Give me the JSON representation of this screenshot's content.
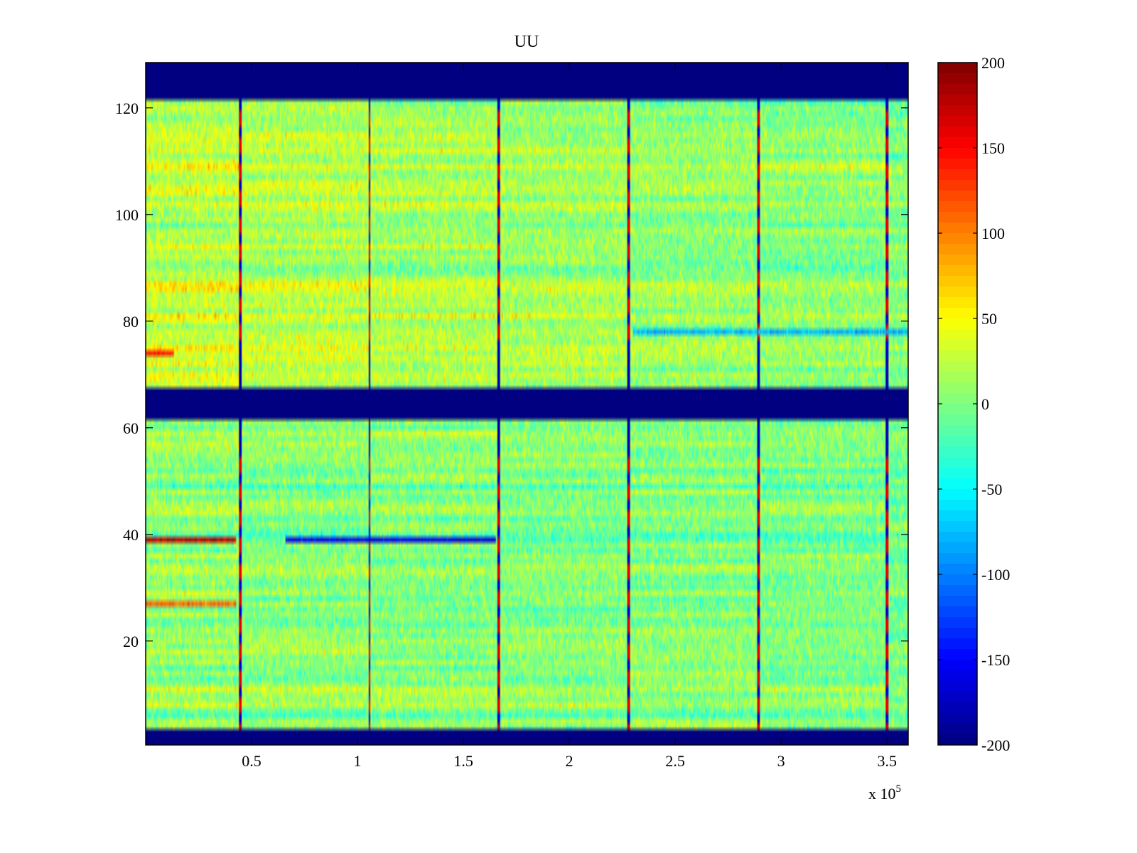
{
  "chart_data": {
    "type": "heatmap",
    "title": "UU",
    "xlabel": "",
    "ylabel": "",
    "x_multiplier_label": "x 10",
    "x_multiplier_exponent": "5",
    "xlim": [
      0,
      3.6
    ],
    "ylim": [
      0.5,
      128.5
    ],
    "xticks": [
      0.5,
      1,
      1.5,
      2,
      2.5,
      3,
      3.5
    ],
    "xtick_labels": [
      "0.5",
      "1",
      "1.5",
      "2",
      "2.5",
      "3",
      "3.5"
    ],
    "yticks": [
      20,
      40,
      60,
      80,
      100,
      120
    ],
    "ytick_labels": [
      "20",
      "40",
      "60",
      "80",
      "100",
      "120"
    ],
    "colormap": "jet",
    "clim": [
      -200,
      200
    ],
    "colorbar_ticks": [
      200,
      150,
      100,
      50,
      0,
      -50,
      -100,
      -150,
      -200
    ],
    "colorbar_tick_labels": [
      "200",
      "150",
      "100",
      "50",
      "0",
      "-50",
      "-100",
      "-150",
      "-200"
    ],
    "saturated_rows_min": [
      [
        1,
        3
      ],
      [
        62,
        67
      ],
      [
        122,
        128
      ]
    ],
    "periodic_event_columns_x": [
      0.445,
      1.057,
      1.668,
      2.28,
      2.891,
      3.502
    ],
    "notable_features": [
      {
        "row": 39,
        "x_range": [
          0.0,
          0.43
        ],
        "value": 180
      },
      {
        "row": 39,
        "x_range": [
          0.66,
          1.65
        ],
        "value": -160
      },
      {
        "row": 74,
        "x_range": [
          0.0,
          0.13
        ],
        "value": 140
      },
      {
        "row": 27,
        "x_range": [
          0.0,
          0.43
        ],
        "value": 110
      },
      {
        "row": 78,
        "x_range": [
          2.3,
          3.6
        ],
        "value": -80
      }
    ]
  }
}
